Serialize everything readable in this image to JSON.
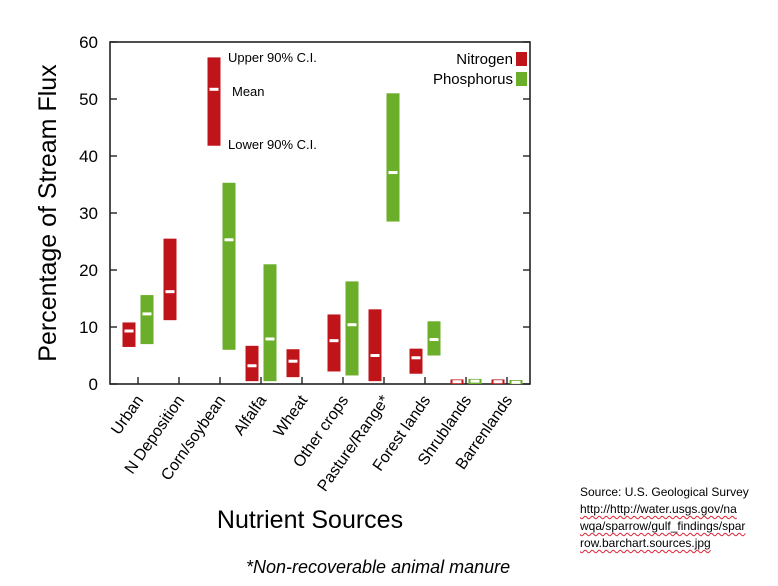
{
  "chart_data": {
    "type": "range-bar",
    "ylabel": "Percentage of Stream Flux",
    "xlabel": "Nutrient Sources",
    "ylim": [
      0,
      60
    ],
    "yticks": [
      0,
      10,
      20,
      30,
      40,
      50,
      60
    ],
    "categories": [
      "Urban",
      "N Deposition",
      "Corn/soybean",
      "Alfalfa",
      "Wheat",
      "Other crops",
      "Pasture/Range*",
      "Forest lands",
      "Shrublands",
      "Barrenlands"
    ],
    "legend_position": "top-right",
    "series": [
      {
        "name": "Nitrogen",
        "color": "#c0141b",
        "points": [
          {
            "category": "Urban",
            "lower": 6.5,
            "mean": 9.3,
            "upper": 10.8
          },
          {
            "category": "N Deposition",
            "lower": 11.2,
            "mean": 16.2,
            "upper": 25.5
          },
          {
            "category": "Alfalfa",
            "lower": 0.5,
            "mean": 3.2,
            "upper": 6.7
          },
          {
            "category": "Wheat",
            "lower": 1.2,
            "mean": 4.0,
            "upper": 6.1
          },
          {
            "category": "Other crops",
            "lower": 2.2,
            "mean": 7.6,
            "upper": 12.2
          },
          {
            "category": "Pasture/Range*",
            "lower": 0.5,
            "mean": 5.0,
            "upper": 13.1
          },
          {
            "category": "Forest lands",
            "lower": 1.8,
            "mean": 4.6,
            "upper": 6.2
          },
          {
            "category": "Shrublands",
            "lower": 0.0,
            "mean": 0.4,
            "upper": 0.8
          },
          {
            "category": "Barrenlands",
            "lower": 0.0,
            "mean": 0.4,
            "upper": 0.8
          }
        ]
      },
      {
        "name": "Phosphorus",
        "color": "#6aae2a",
        "points": [
          {
            "category": "Urban",
            "lower": 7.0,
            "mean": 12.3,
            "upper": 15.6
          },
          {
            "category": "Corn/soybean",
            "lower": 6.0,
            "mean": 25.3,
            "upper": 35.3
          },
          {
            "category": "Alfalfa",
            "lower": 0.5,
            "mean": 7.9,
            "upper": 21.0
          },
          {
            "category": "Other crops",
            "lower": 1.5,
            "mean": 10.4,
            "upper": 18.0
          },
          {
            "category": "Pasture/Range*",
            "lower": 28.5,
            "mean": 37.1,
            "upper": 51.0
          },
          {
            "category": "Forest lands",
            "lower": 5.0,
            "mean": 7.8,
            "upper": 11.0
          },
          {
            "category": "Shrublands",
            "lower": 0.0,
            "mean": 0.5,
            "upper": 0.9
          },
          {
            "category": "Barrenlands",
            "lower": 0.0,
            "mean": 0.3,
            "upper": 0.6
          }
        ]
      }
    ],
    "key": {
      "lower": 41.8,
      "mean": 51.7,
      "upper": 57.3,
      "color": "#c0141b",
      "upper_label": "Upper 90% C.I.",
      "mean_label": "Mean",
      "lower_label": "Lower 90% C.I."
    }
  },
  "source_note": {
    "line1": "Source: U.S. Geological Survey",
    "line2": "http://http://water.usgs.gov/na",
    "line3": "wqa/sparrow/gulf_findings/spar",
    "line4": "row.barchart.sources.jpg"
  },
  "footnote": "*Non-recoverable animal manure"
}
